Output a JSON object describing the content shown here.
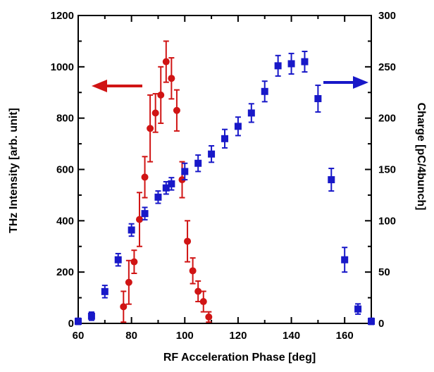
{
  "chart_data": {
    "type": "scatter",
    "title": "",
    "xlabel": "RF Acceleration Phase [deg]",
    "ylabel": "THz Intensity [arb. unit]",
    "y2label": "Charge [pC/4bunch]",
    "xlim": [
      60,
      170
    ],
    "ylim": [
      0,
      1200
    ],
    "y2lim": [
      0,
      300
    ],
    "xticks": [
      60,
      80,
      100,
      120,
      140,
      160
    ],
    "yticks": [
      0,
      200,
      400,
      600,
      800,
      1000,
      1200
    ],
    "y2ticks": [
      0,
      50,
      100,
      150,
      200,
      250,
      300
    ],
    "grid": false,
    "series": [
      {
        "axis": "left",
        "marker": "circle",
        "color": "#d01414",
        "points": [
          {
            "x": 77,
            "y": 65,
            "err": 60
          },
          {
            "x": 79,
            "y": 160,
            "err": 85
          },
          {
            "x": 81,
            "y": 240,
            "err": 45
          },
          {
            "x": 83,
            "y": 405,
            "err": 105
          },
          {
            "x": 85,
            "y": 570,
            "err": 80
          },
          {
            "x": 87,
            "y": 760,
            "err": 130
          },
          {
            "x": 89,
            "y": 820,
            "err": 75
          },
          {
            "x": 91,
            "y": 890,
            "err": 110
          },
          {
            "x": 93,
            "y": 1020,
            "err": 80
          },
          {
            "x": 95,
            "y": 955,
            "err": 80
          },
          {
            "x": 97,
            "y": 830,
            "err": 80
          },
          {
            "x": 99,
            "y": 560,
            "err": 70
          },
          {
            "x": 101,
            "y": 320,
            "err": 80
          },
          {
            "x": 103,
            "y": 205,
            "err": 50
          },
          {
            "x": 105,
            "y": 125,
            "err": 40
          },
          {
            "x": 107,
            "y": 85,
            "err": 40
          },
          {
            "x": 109,
            "y": 25,
            "err": 20
          }
        ]
      },
      {
        "axis": "right",
        "marker": "square",
        "color": "#1818c8",
        "points": [
          {
            "x": 60,
            "y": 2,
            "err": 3
          },
          {
            "x": 65,
            "y": 7,
            "err": 4
          },
          {
            "x": 70,
            "y": 31,
            "err": 6
          },
          {
            "x": 75,
            "y": 62,
            "err": 6
          },
          {
            "x": 80,
            "y": 91,
            "err": 6
          },
          {
            "x": 85,
            "y": 107,
            "err": 6
          },
          {
            "x": 90,
            "y": 123,
            "err": 6
          },
          {
            "x": 93,
            "y": 132,
            "err": 6
          },
          {
            "x": 95,
            "y": 136,
            "err": 6
          },
          {
            "x": 100,
            "y": 148,
            "err": 8
          },
          {
            "x": 105,
            "y": 156,
            "err": 8
          },
          {
            "x": 110,
            "y": 165,
            "err": 8
          },
          {
            "x": 115,
            "y": 180,
            "err": 9
          },
          {
            "x": 120,
            "y": 192,
            "err": 9
          },
          {
            "x": 125,
            "y": 205,
            "err": 9
          },
          {
            "x": 130,
            "y": 226,
            "err": 10
          },
          {
            "x": 135,
            "y": 251,
            "err": 10
          },
          {
            "x": 140,
            "y": 253,
            "err": 10
          },
          {
            "x": 145,
            "y": 255,
            "err": 10
          },
          {
            "x": 150,
            "y": 219,
            "err": 13
          },
          {
            "x": 155,
            "y": 140,
            "err": 11
          },
          {
            "x": 160,
            "y": 62,
            "err": 12
          },
          {
            "x": 165,
            "y": 14,
            "err": 5
          },
          {
            "x": 170,
            "y": 2,
            "err": 3
          }
        ]
      }
    ],
    "annotations": [
      {
        "type": "arrow",
        "direction": "left",
        "color": "#d01414",
        "axis": "left"
      },
      {
        "type": "arrow",
        "direction": "right",
        "color": "#1818c8",
        "axis": "right"
      }
    ]
  }
}
